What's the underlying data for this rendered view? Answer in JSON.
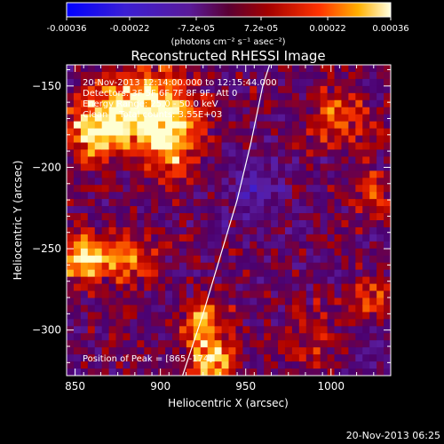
{
  "chart_data": {
    "type": "heatmap",
    "title": "Reconstructed RHESSI Image",
    "xlabel": "Heliocentric X (arcsec)",
    "ylabel": "Heliocentric Y (arcsec)",
    "xlim": [
      845,
      1035
    ],
    "ylim": [
      -328,
      -137
    ],
    "x_ticks": [
      850,
      900,
      950,
      1000
    ],
    "y_ticks": [
      -150,
      -200,
      -250,
      -300
    ],
    "colorbar": {
      "ticks": [
        "-0.00036",
        "-0.00022",
        "-7.2e-05",
        "7.2e-05",
        "0.00022",
        "0.00036"
      ],
      "values": [
        -0.00036,
        -0.00022,
        -7.2e-05,
        7.2e-05,
        0.00022,
        0.00036
      ],
      "unit_label": "(photons cm⁻² s⁻¹ asec⁻²)"
    },
    "annotations": [
      "20-Nov-2013 12:14:00.000 to 12:15:44.000",
      "Detectors: 3F 5F 6F 7F 8F 9F, Att 0",
      "Energy Range: 25.0 - 50.0 keV",
      "Clean    Total counts: 3.55E+03"
    ],
    "peak_label": "Position of Peak = [865,-174]",
    "peak": [
      865,
      -174
    ],
    "limb_curve": [
      [
        913,
        -328
      ],
      [
        925,
        -290
      ],
      [
        935,
        -255
      ],
      [
        945,
        -220
      ],
      [
        953,
        -185
      ],
      [
        960,
        -150
      ],
      [
        964,
        -137
      ]
    ],
    "bright_regions": [
      {
        "x": 865,
        "y": -174,
        "intensity": 1.0,
        "sigma": 14
      },
      {
        "x": 895,
        "y": -160,
        "intensity": 0.85,
        "sigma": 16
      },
      {
        "x": 905,
        "y": -185,
        "intensity": 0.7,
        "sigma": 14
      },
      {
        "x": 855,
        "y": -255,
        "intensity": 0.8,
        "sigma": 10
      },
      {
        "x": 880,
        "y": -255,
        "intensity": 0.6,
        "sigma": 12
      },
      {
        "x": 930,
        "y": -318,
        "intensity": 0.85,
        "sigma": 10
      },
      {
        "x": 925,
        "y": -295,
        "intensity": 0.65,
        "sigma": 9
      },
      {
        "x": 1005,
        "y": -170,
        "intensity": 0.5,
        "sigma": 12
      },
      {
        "x": 1025,
        "y": -215,
        "intensity": 0.45,
        "sigma": 10
      },
      {
        "x": 1025,
        "y": -280,
        "intensity": 0.4,
        "sigma": 10
      },
      {
        "x": 990,
        "y": -305,
        "intensity": 0.4,
        "sigma": 12
      }
    ],
    "dark_regions": [
      {
        "x": 955,
        "y": -215,
        "intensity": -0.35,
        "sigma": 14
      },
      {
        "x": 1015,
        "y": -310,
        "intensity": -0.25,
        "sigma": 8
      }
    ]
  },
  "footer_timestamp": "20-Nov-2013 06:25"
}
